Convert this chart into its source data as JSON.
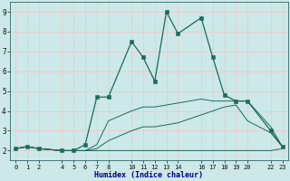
{
  "xlabel": "Humidex (Indice chaleur)",
  "bg_color": "#cce8e8",
  "grid_color": "#f0c8c8",
  "line_color": "#1a6b5a",
  "xlim": [
    -0.5,
    23.5
  ],
  "ylim": [
    1.5,
    9.5
  ],
  "xticks": [
    0,
    1,
    2,
    4,
    5,
    6,
    7,
    8,
    10,
    11,
    12,
    13,
    14,
    16,
    17,
    18,
    19,
    20,
    22,
    23
  ],
  "yticks": [
    2,
    3,
    4,
    5,
    6,
    7,
    8,
    9
  ],
  "series": [
    {
      "x": [
        0,
        1,
        2,
        4,
        5,
        6,
        7,
        8,
        10,
        11,
        12,
        13,
        14,
        16,
        17,
        18,
        19,
        20,
        22,
        23
      ],
      "y": [
        2.1,
        2.2,
        2.1,
        2.0,
        2.0,
        2.0,
        2.0,
        2.0,
        2.0,
        2.0,
        2.0,
        2.0,
        2.0,
        2.0,
        2.0,
        2.0,
        2.0,
        2.0,
        2.0,
        2.1
      ],
      "marker": null,
      "lw": 0.7
    },
    {
      "x": [
        0,
        1,
        2,
        4,
        5,
        6,
        7,
        8,
        10,
        11,
        12,
        13,
        14,
        16,
        17,
        18,
        19,
        20,
        22,
        23
      ],
      "y": [
        2.1,
        2.2,
        2.1,
        2.0,
        2.0,
        2.0,
        2.1,
        2.5,
        3.0,
        3.2,
        3.2,
        3.3,
        3.4,
        3.8,
        4.0,
        4.2,
        4.3,
        3.5,
        2.9,
        2.2
      ],
      "marker": null,
      "lw": 0.7
    },
    {
      "x": [
        0,
        1,
        2,
        4,
        5,
        6,
        7,
        8,
        10,
        11,
        12,
        13,
        14,
        16,
        17,
        18,
        19,
        20,
        22,
        23
      ],
      "y": [
        2.1,
        2.2,
        2.1,
        2.0,
        2.0,
        2.0,
        2.3,
        3.5,
        4.0,
        4.2,
        4.2,
        4.3,
        4.4,
        4.6,
        4.5,
        4.5,
        4.5,
        4.5,
        3.2,
        2.2
      ],
      "marker": null,
      "lw": 0.7
    },
    {
      "x": [
        0,
        1,
        2,
        4,
        5,
        6,
        7,
        8,
        10,
        11,
        12,
        13,
        14,
        16,
        17,
        18,
        19,
        20,
        22,
        23
      ],
      "y": [
        2.1,
        2.2,
        2.1,
        2.0,
        2.0,
        2.3,
        4.7,
        4.7,
        7.5,
        6.7,
        5.5,
        9.0,
        7.9,
        8.7,
        6.7,
        4.8,
        4.5,
        4.5,
        3.0,
        2.2
      ],
      "marker": "s",
      "lw": 0.9
    }
  ]
}
